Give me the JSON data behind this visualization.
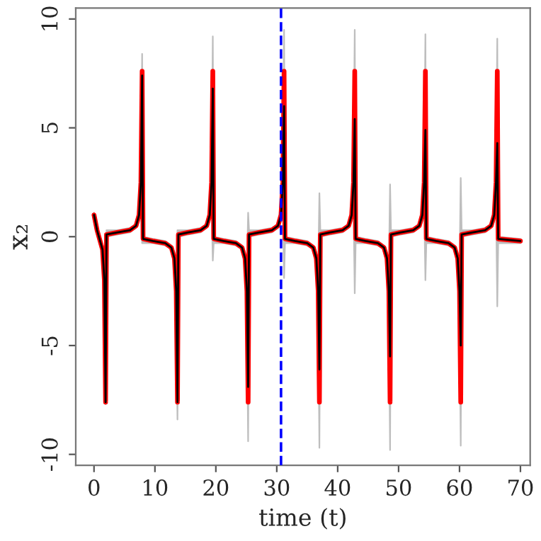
{
  "chart_data": {
    "type": "line",
    "xlabel": "time (t)",
    "ylabel": "x₂",
    "x": [
      0,
      0.5,
      1.0,
      1.4,
      1.7,
      1.9,
      2.05,
      3.9,
      5.9,
      6.9,
      7.4,
      7.7,
      7.9,
      8.05,
      9.7,
      11.7,
      12.7,
      13.2,
      13.5,
      13.7,
      13.85,
      15.5,
      17.5,
      18.5,
      19.0,
      19.3,
      19.5,
      19.65,
      21.3,
      23.3,
      24.3,
      24.8,
      25.1,
      25.3,
      25.45,
      27.2,
      29.2,
      30.2,
      30.7,
      31.0,
      31.2,
      31.35,
      33.0,
      35.0,
      36.0,
      36.5,
      36.8,
      37.0,
      37.15,
      38.8,
      40.8,
      41.8,
      42.3,
      42.6,
      42.8,
      42.95,
      44.6,
      46.6,
      47.6,
      48.1,
      48.4,
      48.6,
      48.75,
      50.4,
      52.4,
      53.4,
      53.9,
      54.2,
      54.4,
      54.55,
      56.2,
      58.2,
      59.2,
      59.7,
      60.0,
      60.2,
      60.35,
      62.2,
      64.2,
      65.2,
      65.7,
      66.0,
      66.2,
      66.35,
      70
    ],
    "series": [
      {
        "color": "#ff0000",
        "values": [
          1.0,
          0.3,
          -0.2,
          -0.6,
          -2.0,
          -7.6,
          0.1,
          0.2,
          0.3,
          0.5,
          1.0,
          2.5,
          7.6,
          -0.1,
          -0.2,
          -0.3,
          -0.5,
          -1.0,
          -2.5,
          -7.6,
          0.1,
          0.2,
          0.3,
          0.5,
          1.0,
          2.5,
          7.6,
          -0.1,
          -0.2,
          -0.3,
          -0.5,
          -1.0,
          -2.5,
          -7.6,
          0.1,
          0.2,
          0.3,
          0.5,
          1.0,
          2.5,
          7.6,
          -0.1,
          -0.2,
          -0.3,
          -0.5,
          -1.0,
          -2.5,
          -7.6,
          0.1,
          0.2,
          0.3,
          0.5,
          1.0,
          2.5,
          7.6,
          -0.1,
          -0.2,
          -0.3,
          -0.5,
          -1.0,
          -2.5,
          -7.6,
          0.1,
          0.2,
          0.3,
          0.5,
          1.0,
          2.5,
          7.6,
          -0.1,
          -0.2,
          -0.3,
          -0.5,
          -1.0,
          -2.5,
          -7.6,
          0.1,
          0.2,
          0.3,
          0.5,
          1.0,
          2.5,
          7.6,
          -0.1,
          -0.2
        ]
      },
      {
        "color": "#000000",
        "values": [
          1.0,
          0.3,
          -0.2,
          -0.6,
          -2.0,
          -7.6,
          0.1,
          0.2,
          0.3,
          0.5,
          1.0,
          2.5,
          7.4,
          -0.1,
          -0.2,
          -0.3,
          -0.5,
          -1.0,
          -2.5,
          -7.6,
          0.1,
          0.2,
          0.3,
          0.5,
          1.0,
          2.5,
          6.8,
          -0.1,
          -0.2,
          -0.3,
          -0.5,
          -1.0,
          -2.5,
          -6.9,
          0.1,
          0.2,
          0.3,
          0.5,
          1.0,
          2.5,
          6.0,
          -0.1,
          -0.2,
          -0.3,
          -0.5,
          -1.0,
          -2.5,
          -6.1,
          0.1,
          0.2,
          0.3,
          0.5,
          1.0,
          2.5,
          5.4,
          -0.1,
          -0.2,
          -0.3,
          -0.5,
          -1.0,
          -2.5,
          -5.5,
          0.1,
          0.2,
          0.3,
          0.5,
          1.0,
          2.5,
          4.9,
          -0.1,
          -0.2,
          -0.3,
          -0.5,
          -1.0,
          -2.5,
          -5.0,
          0.1,
          0.2,
          0.3,
          0.5,
          1.0,
          2.5,
          4.3,
          -0.1,
          -0.2
        ],
        "lower": [
          0.9,
          0.2,
          -0.3,
          -0.8,
          -2.5,
          -7.7,
          0.0,
          0.1,
          0.2,
          0.4,
          0.7,
          1.5,
          -0.3,
          -0.3,
          -0.3,
          -0.4,
          -0.6,
          -1.3,
          -3.5,
          -8.4,
          0.0,
          0.1,
          0.2,
          0.4,
          0.7,
          1.5,
          -1.1,
          -0.3,
          -0.3,
          -0.4,
          -0.6,
          -1.3,
          -3.5,
          -9.4,
          0.0,
          0.1,
          0.2,
          0.4,
          0.7,
          1.5,
          -1.9,
          -0.3,
          -0.3,
          -0.4,
          -0.6,
          -1.3,
          -3.5,
          -9.7,
          0.0,
          0.1,
          0.2,
          0.4,
          0.7,
          1.5,
          -2.6,
          -0.3,
          -0.3,
          -0.4,
          -0.6,
          -1.3,
          -3.5,
          -9.8,
          0.0,
          0.1,
          0.2,
          0.4,
          0.7,
          1.5,
          -2.0,
          -0.3,
          -0.3,
          -0.4,
          -0.6,
          -1.3,
          -3.5,
          -9.6,
          0.0,
          0.1,
          0.2,
          0.4,
          0.7,
          1.5,
          -3.2,
          -0.3,
          -0.3
        ],
        "upper": [
          1.1,
          0.4,
          -0.1,
          -0.5,
          -1.5,
          -3.0,
          0.3,
          0.3,
          0.4,
          0.6,
          1.3,
          3.5,
          8.4,
          0.0,
          -0.1,
          -0.2,
          -0.4,
          -0.7,
          -1.5,
          0.3,
          0.3,
          0.3,
          0.4,
          0.6,
          1.3,
          3.5,
          9.2,
          0.0,
          -0.1,
          -0.2,
          -0.4,
          -0.7,
          -1.5,
          1.1,
          0.3,
          0.3,
          0.4,
          0.6,
          1.3,
          3.5,
          9.5,
          0.0,
          -0.1,
          -0.2,
          -0.4,
          -0.7,
          -1.5,
          2.0,
          0.3,
          0.3,
          0.4,
          0.6,
          1.3,
          3.5,
          9.5,
          0.0,
          -0.1,
          -0.2,
          -0.4,
          -0.7,
          -1.5,
          2.4,
          0.3,
          0.3,
          0.4,
          0.6,
          1.3,
          3.5,
          9.3,
          0.0,
          -0.1,
          -0.2,
          -0.4,
          -0.7,
          -1.5,
          2.7,
          0.3,
          0.3,
          0.4,
          0.6,
          1.3,
          3.5,
          9.1,
          0.0,
          -0.1
        ]
      }
    ],
    "xlim": [
      -3,
      71.6
    ],
    "xticks": [
      0,
      10,
      20,
      30,
      40,
      50,
      60,
      70
    ],
    "ylim": [
      -10.5,
      10.5
    ],
    "yticks": [
      -10,
      -5,
      0,
      5,
      10
    ],
    "ref_lines": [
      {
        "axis": "x",
        "value": 30.7,
        "color": "#0000ff",
        "line_style": "dashed"
      }
    ],
    "grid": false,
    "legend": false
  }
}
